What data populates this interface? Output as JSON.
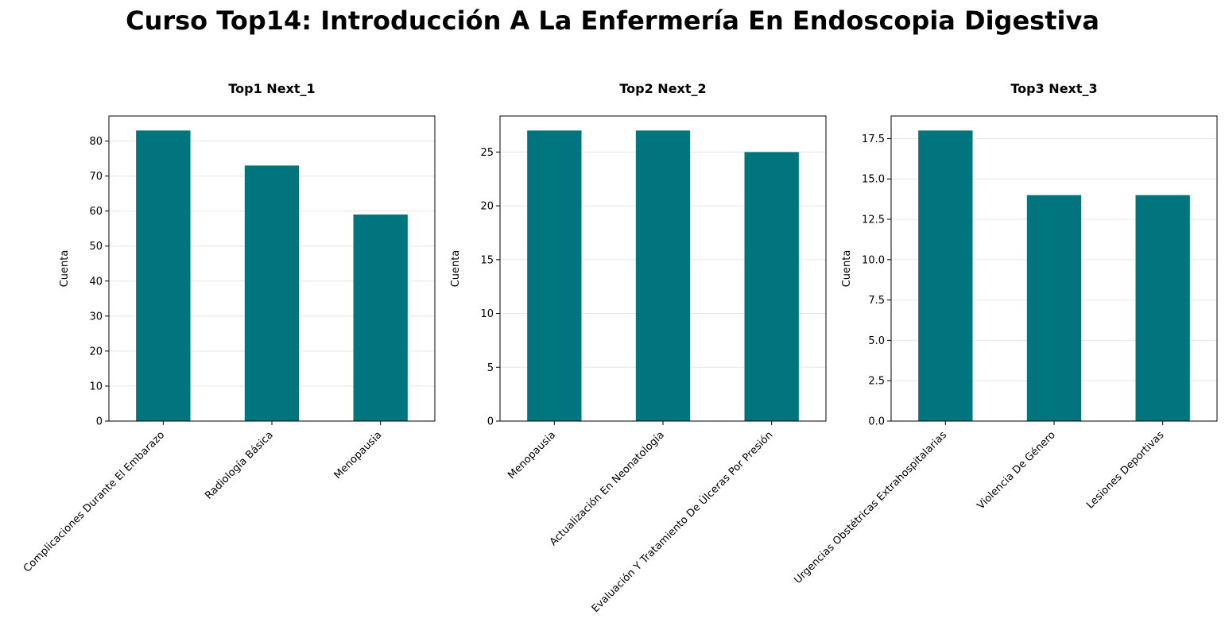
{
  "title": "Curso Top14: Introducción A La Enfermería En Endoscopia Digestiva",
  "colors": {
    "bar": "#00757e",
    "grid": "#e6e6e6",
    "axis": "#000000"
  },
  "chart_data": [
    {
      "type": "bar",
      "title": "Top1 Next_1",
      "xlabel": "",
      "ylabel": "Cuenta",
      "categories": [
        "Complicaciones Durante El Embarazo",
        "Radiología Básica",
        "Menopausia"
      ],
      "values": [
        83,
        73,
        59
      ],
      "ylim": [
        0,
        87.15
      ],
      "yticks": [
        0,
        10,
        20,
        30,
        40,
        50,
        60,
        70,
        80
      ],
      "ytick_labels": [
        "0",
        "10",
        "20",
        "30",
        "40",
        "50",
        "60",
        "70",
        "80"
      ],
      "grid": "y"
    },
    {
      "type": "bar",
      "title": "Top2 Next_2",
      "xlabel": "",
      "ylabel": "Cuenta",
      "categories": [
        "Menopausia",
        "Actualización En Neonatología",
        "Evaluación Y Tratamiento De Úlceras Por Presión"
      ],
      "values": [
        27,
        27,
        25
      ],
      "ylim": [
        0,
        28.35
      ],
      "yticks": [
        0,
        5,
        10,
        15,
        20,
        25
      ],
      "ytick_labels": [
        "0",
        "5",
        "10",
        "15",
        "20",
        "25"
      ],
      "grid": "y"
    },
    {
      "type": "bar",
      "title": "Top3 Next_3",
      "xlabel": "",
      "ylabel": "Cuenta",
      "categories": [
        "Urgencias Obstétricas Extrahospitalarias",
        "Violencia De Género",
        "Lesiones Deportivas"
      ],
      "values": [
        18,
        14,
        14
      ],
      "ylim": [
        0,
        18.9
      ],
      "yticks": [
        0,
        2.5,
        5,
        7.5,
        10,
        12.5,
        15,
        17.5
      ],
      "ytick_labels": [
        "0.0",
        "2.5",
        "5.0",
        "7.5",
        "10.0",
        "12.5",
        "15.0",
        "17.5"
      ],
      "grid": "y"
    }
  ]
}
